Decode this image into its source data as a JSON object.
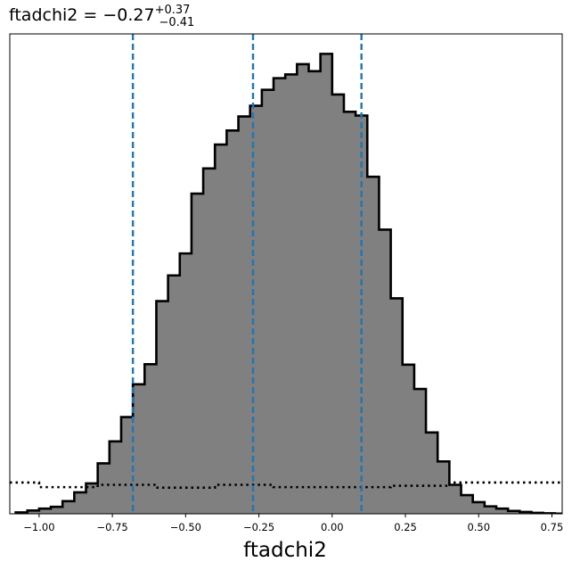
{
  "chart_data": {
    "type": "histogram",
    "title": {
      "prefix": "ftadchi2 = ",
      "value": "−0.27",
      "upper": "+0.37",
      "lower": "−0.41"
    },
    "xlabel": "ftadchi2",
    "ylabel": "",
    "xlim": [
      -1.1,
      0.785
    ],
    "ylim": [
      0,
      1.0
    ],
    "x_ticks": [
      -1.0,
      -0.75,
      -0.5,
      -0.25,
      0.0,
      0.25,
      0.5,
      0.75
    ],
    "x_tick_labels": [
      "−1.00",
      "−0.75",
      "−0.50",
      "−0.25",
      "0.00",
      "0.25",
      "0.50",
      "0.75"
    ],
    "y_ticks_shown": false,
    "bin_width": 0.04,
    "bin_start": -1.08,
    "posterior_histogram": {
      "fill_color": "#808080",
      "edge_color": "#000000",
      "heights": [
        0.003,
        0.007,
        0.011,
        0.015,
        0.027,
        0.046,
        0.065,
        0.108,
        0.155,
        0.207,
        0.277,
        0.32,
        0.455,
        0.51,
        0.557,
        0.685,
        0.739,
        0.79,
        0.82,
        0.85,
        0.873,
        0.907,
        0.932,
        0.94,
        0.962,
        0.947,
        0.984,
        0.897,
        0.86,
        0.852,
        0.721,
        0.608,
        0.461,
        0.319,
        0.267,
        0.174,
        0.112,
        0.062,
        0.04,
        0.025,
        0.016,
        0.011,
        0.006,
        0.004,
        0.002,
        0.001,
        0.0005,
        0.0002
      ]
    },
    "prior_histogram": {
      "line_style": "dotted",
      "color": "#000000",
      "steps": [
        {
          "x0": -1.1,
          "x1": -1.0,
          "h": 0.067
        },
        {
          "x0": -1.0,
          "x1": -0.8,
          "h": 0.057
        },
        {
          "x0": -0.8,
          "x1": -0.6,
          "h": 0.062
        },
        {
          "x0": -0.6,
          "x1": -0.4,
          "h": 0.056
        },
        {
          "x0": -0.4,
          "x1": -0.2,
          "h": 0.062
        },
        {
          "x0": -0.2,
          "x1": 0.2,
          "h": 0.057
        },
        {
          "x0": 0.2,
          "x1": 0.4,
          "h": 0.06
        },
        {
          "x0": 0.4,
          "x1": 0.785,
          "h": 0.067
        }
      ]
    },
    "quantile_lines": {
      "color": "#1f77b4",
      "style": "dashed",
      "values": [
        -0.68,
        -0.27,
        0.1
      ]
    },
    "grid": false,
    "legend": "none"
  }
}
